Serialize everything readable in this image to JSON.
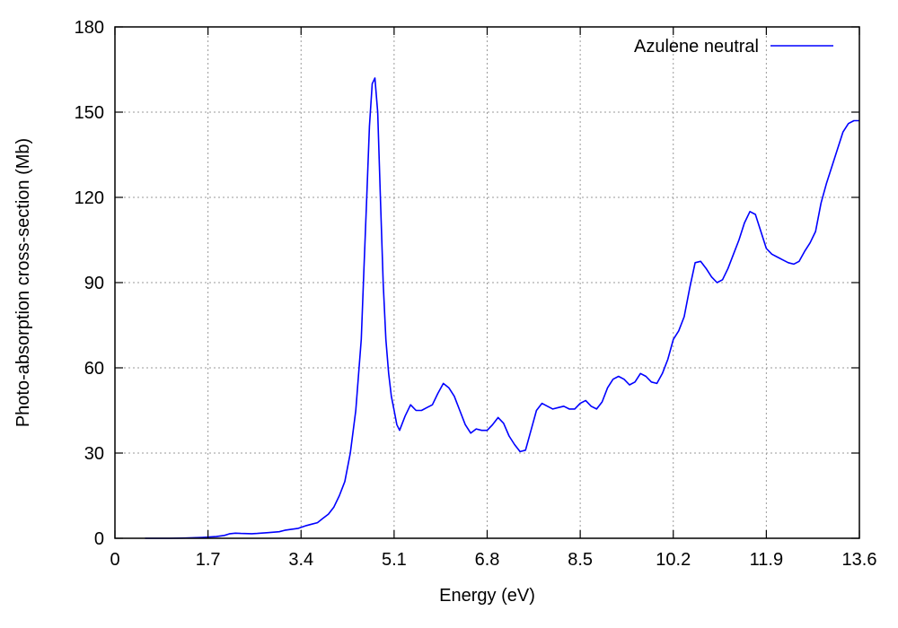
{
  "chart_data": {
    "type": "line",
    "title": "",
    "xlabel": "Energy (eV)",
    "ylabel": "Photo-absorption cross-section (Mb)",
    "xlim": [
      0,
      13.6
    ],
    "ylim": [
      0,
      180
    ],
    "xticks": [
      0,
      1.7,
      3.4,
      5.1,
      6.8,
      8.5,
      10.2,
      11.9,
      13.6
    ],
    "xtick_labels": [
      "0",
      "1.7",
      "3.4",
      "5.1",
      "6.8",
      "8.5",
      "10.2",
      "11.9",
      "13.6"
    ],
    "yticks": [
      0,
      30,
      60,
      90,
      120,
      150,
      180
    ],
    "ytick_labels": [
      "0",
      "30",
      "60",
      "90",
      "120",
      "150",
      "180"
    ],
    "grid": true,
    "legend_position": "top-right",
    "series": [
      {
        "name": "Azulene neutral",
        "color": "#0000ff",
        "x": [
          0.55,
          1.0,
          1.3,
          1.6,
          1.85,
          2.0,
          2.1,
          2.2,
          2.3,
          2.5,
          2.6,
          2.8,
          3.0,
          3.1,
          3.2,
          3.35,
          3.5,
          3.6,
          3.7,
          3.8,
          3.9,
          4.0,
          4.1,
          4.2,
          4.3,
          4.4,
          4.5,
          4.55,
          4.6,
          4.65,
          4.7,
          4.75,
          4.8,
          4.85,
          4.9,
          4.95,
          5.0,
          5.05,
          5.1,
          5.15,
          5.2,
          5.3,
          5.4,
          5.5,
          5.6,
          5.7,
          5.8,
          5.9,
          6.0,
          6.1,
          6.2,
          6.3,
          6.4,
          6.5,
          6.6,
          6.7,
          6.8,
          6.9,
          7.0,
          7.1,
          7.2,
          7.3,
          7.4,
          7.5,
          7.6,
          7.7,
          7.8,
          7.9,
          8.0,
          8.1,
          8.2,
          8.3,
          8.4,
          8.5,
          8.6,
          8.7,
          8.8,
          8.9,
          9.0,
          9.1,
          9.2,
          9.3,
          9.4,
          9.5,
          9.6,
          9.7,
          9.8,
          9.9,
          10.0,
          10.1,
          10.2,
          10.3,
          10.4,
          10.5,
          10.6,
          10.7,
          10.8,
          10.9,
          11.0,
          11.1,
          11.2,
          11.3,
          11.4,
          11.5,
          11.6,
          11.7,
          11.8,
          11.9,
          12.0,
          12.1,
          12.2,
          12.3,
          12.4,
          12.5,
          12.6,
          12.7,
          12.8,
          12.9,
          13.0,
          13.1,
          13.2,
          13.3,
          13.4,
          13.5,
          13.6
        ],
        "values": [
          0,
          0,
          0.1,
          0.3,
          0.6,
          1.0,
          1.6,
          1.8,
          1.7,
          1.6,
          1.7,
          2.0,
          2.3,
          2.8,
          3.1,
          3.5,
          4.5,
          5.0,
          5.5,
          7.0,
          8.5,
          11.0,
          15.0,
          20.0,
          30.0,
          45.0,
          70.0,
          95.0,
          120.0,
          145.0,
          160.0,
          162.0,
          150.0,
          120.0,
          90.0,
          70.0,
          58.0,
          50.0,
          45.0,
          40.0,
          38.0,
          43.0,
          47.0,
          45.0,
          45.0,
          46.0,
          47.0,
          51.0,
          54.5,
          53.0,
          50.0,
          45.0,
          40.0,
          37.0,
          38.5,
          38.0,
          38.0,
          40.0,
          42.5,
          40.5,
          36.0,
          33.0,
          30.5,
          31.0,
          38.0,
          45.0,
          47.5,
          46.5,
          45.5,
          46.0,
          46.5,
          45.5,
          45.5,
          47.5,
          48.5,
          46.5,
          45.5,
          48.0,
          53.0,
          56.0,
          57.0,
          56.0,
          54.0,
          55.0,
          58.0,
          57.0,
          55.0,
          54.5,
          58.0,
          63.0,
          70.0,
          73.0,
          78.0,
          88.0,
          97.0,
          97.5,
          95.0,
          92.0,
          90.0,
          91.0,
          95.0,
          100.0,
          105.0,
          111.0,
          115.0,
          114.0,
          108.0,
          102.0,
          100.0,
          99.0,
          98.0,
          97.0,
          96.5,
          97.5,
          101.0,
          104.0,
          108.0,
          118.0,
          125.0,
          131.0,
          137.0,
          143.0,
          146.0,
          147.0,
          147.0
        ]
      }
    ]
  }
}
